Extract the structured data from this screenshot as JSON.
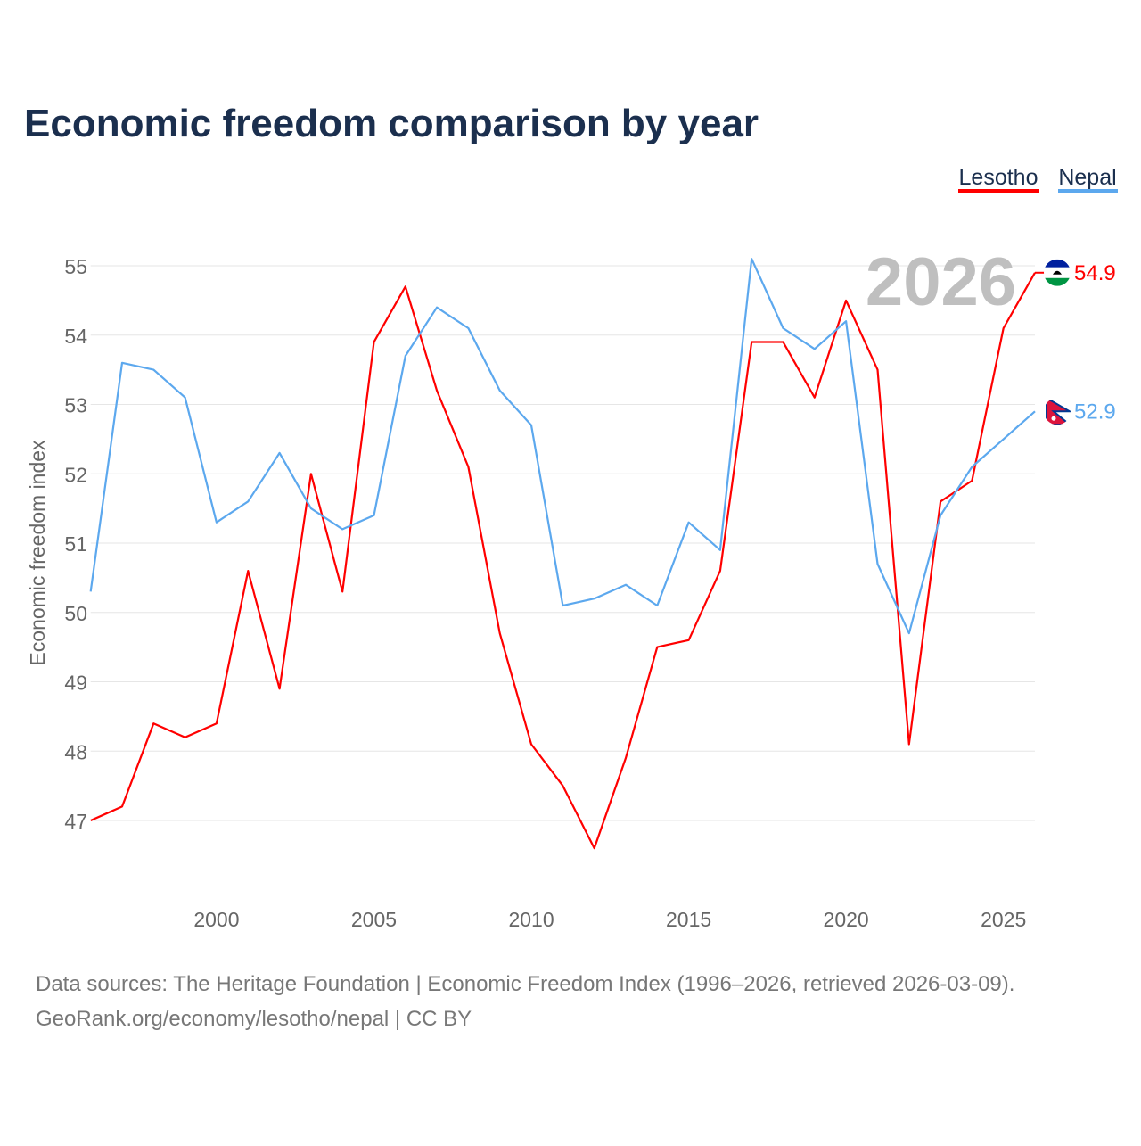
{
  "chart_data": {
    "type": "line",
    "title": "Economic freedom comparison by year",
    "xlabel": "",
    "ylabel": "Economic freedom index",
    "xlim": [
      1996,
      2026
    ],
    "ylim": [
      46,
      55.4
    ],
    "x_ticks": [
      2000,
      2005,
      2010,
      2015,
      2020,
      2025
    ],
    "y_ticks": [
      47,
      48,
      49,
      50,
      51,
      52,
      53,
      54,
      55
    ],
    "grid": true,
    "legend_position": "top-right",
    "year_annotation": "2026",
    "x": [
      1996,
      1997,
      1998,
      1999,
      2000,
      2001,
      2002,
      2003,
      2004,
      2005,
      2006,
      2007,
      2008,
      2009,
      2010,
      2011,
      2012,
      2013,
      2014,
      2015,
      2016,
      2017,
      2018,
      2019,
      2020,
      2021,
      2022,
      2023,
      2024,
      2025,
      2026
    ],
    "series": [
      {
        "name": "Lesotho",
        "color": "#ff0000",
        "end_label": "54.9",
        "flag": "lesotho-flag",
        "values": [
          47.0,
          47.2,
          48.4,
          48.2,
          48.4,
          50.6,
          48.9,
          52.0,
          50.3,
          53.9,
          54.7,
          53.2,
          52.1,
          49.7,
          48.1,
          47.5,
          46.6,
          47.9,
          49.5,
          49.6,
          50.6,
          53.9,
          53.9,
          53.1,
          54.5,
          53.5,
          48.1,
          51.6,
          51.9,
          54.1,
          54.9
        ]
      },
      {
        "name": "Nepal",
        "color": "#5ca8ee",
        "end_label": "52.9",
        "flag": "nepal-flag",
        "values": [
          50.3,
          53.6,
          53.5,
          53.1,
          51.3,
          51.6,
          52.3,
          51.5,
          51.2,
          51.4,
          53.7,
          54.4,
          54.1,
          53.2,
          52.7,
          50.1,
          50.2,
          50.4,
          50.1,
          51.3,
          50.9,
          55.1,
          54.1,
          53.8,
          54.2,
          50.7,
          49.7,
          51.4,
          52.1,
          52.5,
          52.9
        ]
      }
    ]
  },
  "footer": {
    "line1": "Data sources: The Heritage Foundation | Economic Freedom Index (1996–2026, retrieved 2026-03-09).",
    "line2": "GeoRank.org/economy/lesotho/nepal | CC BY"
  },
  "colors": {
    "title": "#1b2f4e",
    "axis_text": "#666666",
    "grid": "#e6e6e6",
    "annotation": "#bfbfbf"
  }
}
